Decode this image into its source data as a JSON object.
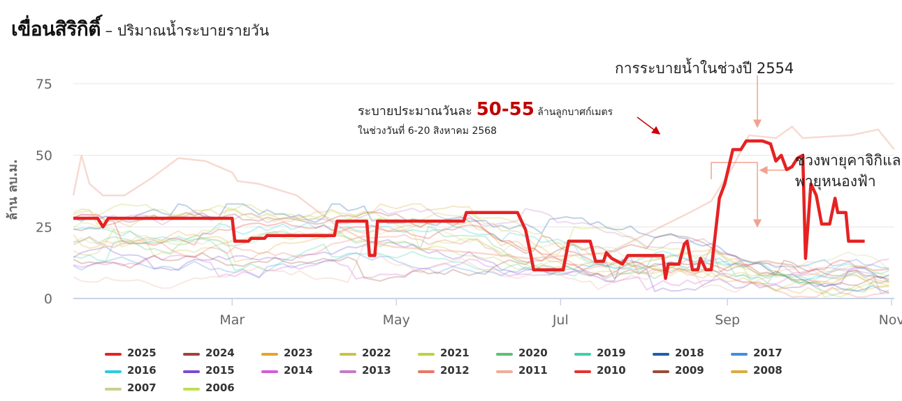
{
  "title": {
    "main": "เขื่อนสิริกิติ์",
    "sub": " – ปริมาณน้ำระบายรายวัน"
  },
  "chart_data": {
    "type": "line",
    "ylabel": "ล้าน ลบ.ม.",
    "ylim": [
      0,
      75
    ],
    "yticks": [
      "0",
      "25",
      "50",
      "75"
    ],
    "xticks": [
      "Mar",
      "May",
      "Jul",
      "Sep",
      "Nov"
    ],
    "grid": "horizontal",
    "legend_position": "bottom",
    "highlight": {
      "name": "2025",
      "color": "#e52222",
      "points": [
        [
          1,
          28
        ],
        [
          10,
          28
        ],
        [
          12,
          25
        ],
        [
          14,
          28
        ],
        [
          60,
          28
        ],
        [
          61,
          20
        ],
        [
          66,
          20
        ],
        [
          67,
          21
        ],
        [
          72,
          21
        ],
        [
          73,
          22
        ],
        [
          84,
          22
        ],
        [
          86,
          22
        ],
        [
          98,
          22
        ],
        [
          99,
          27
        ],
        [
          110,
          27
        ],
        [
          111,
          15
        ],
        [
          113,
          15
        ],
        [
          114,
          27
        ],
        [
          146,
          27
        ],
        [
          147,
          30
        ],
        [
          166,
          30
        ],
        [
          169,
          24
        ],
        [
          171,
          15
        ],
        [
          172,
          10
        ],
        [
          183,
          10
        ],
        [
          185,
          20
        ],
        [
          193,
          20
        ],
        [
          195,
          13
        ],
        [
          198,
          13
        ],
        [
          199,
          16
        ],
        [
          201,
          14
        ],
        [
          205,
          12
        ],
        [
          207,
          15
        ],
        [
          212,
          15
        ],
        [
          220,
          15
        ],
        [
          221,
          7
        ],
        [
          222,
          12
        ],
        [
          226,
          12
        ],
        [
          228,
          19
        ],
        [
          229,
          20
        ],
        [
          231,
          10
        ],
        [
          233,
          10
        ],
        [
          234,
          14
        ],
        [
          236,
          10
        ],
        [
          238,
          10
        ],
        [
          241,
          35
        ],
        [
          243,
          40
        ],
        [
          246,
          52
        ],
        [
          249,
          52
        ],
        [
          251,
          55
        ],
        [
          257,
          55
        ],
        [
          260,
          54
        ],
        [
          262,
          48
        ],
        [
          264,
          50
        ],
        [
          266,
          45
        ],
        [
          268,
          46
        ],
        [
          270,
          49
        ],
        [
          272,
          50
        ],
        [
          273,
          14
        ],
        [
          275,
          40
        ],
        [
          277,
          36
        ],
        [
          279,
          26
        ],
        [
          282,
          26
        ],
        [
          284,
          35
        ],
        [
          285,
          30
        ],
        [
          288,
          30
        ],
        [
          289,
          20
        ],
        [
          295,
          20
        ]
      ]
    },
    "annotations": {
      "year_2554": "การระบายน้ำในช่วงปี 2554",
      "rate_prefix": "ระบายประมาณวันละ ",
      "rate_value": "50-55",
      "rate_unit": " ล้านลูกบาศก์เมตร",
      "rate_period": "ในช่วงวันที่ 6-20 สิงหาคม 2568",
      "storm_line1": "ช่วงพายุคาจิกิแล",
      "storm_line2": "พายุหนองฟ้า"
    }
  },
  "legend": [
    {
      "label": "2025",
      "color": "#e52222"
    },
    {
      "label": "2024",
      "color": "#a0433d"
    },
    {
      "label": "2023",
      "color": "#e7a42a"
    },
    {
      "label": "2022",
      "color": "#c7c24a"
    },
    {
      "label": "2021",
      "color": "#b9d43c"
    },
    {
      "label": "2020",
      "color": "#5fbf76"
    },
    {
      "label": "2019",
      "color": "#3fd1a6"
    },
    {
      "label": "2018",
      "color": "#1c5fae"
    },
    {
      "label": "2017",
      "color": "#3f8fe0"
    },
    {
      "label": "2016",
      "color": "#2fc9e0"
    },
    {
      "label": "2015",
      "color": "#7a4bd1"
    },
    {
      "label": "2014",
      "color": "#d55ad9"
    },
    {
      "label": "2013",
      "color": "#c57ac2"
    },
    {
      "label": "2012",
      "color": "#ea7760"
    },
    {
      "label": "2011",
      "color": "#eeae98"
    },
    {
      "label": "2010",
      "color": "#e5322d"
    },
    {
      "label": "2009",
      "color": "#9a4b36"
    },
    {
      "label": "2008",
      "color": "#dcab3b"
    },
    {
      "label": "2007",
      "color": "#cccf8e"
    },
    {
      "label": "2006",
      "color": "#bfe04a"
    }
  ]
}
